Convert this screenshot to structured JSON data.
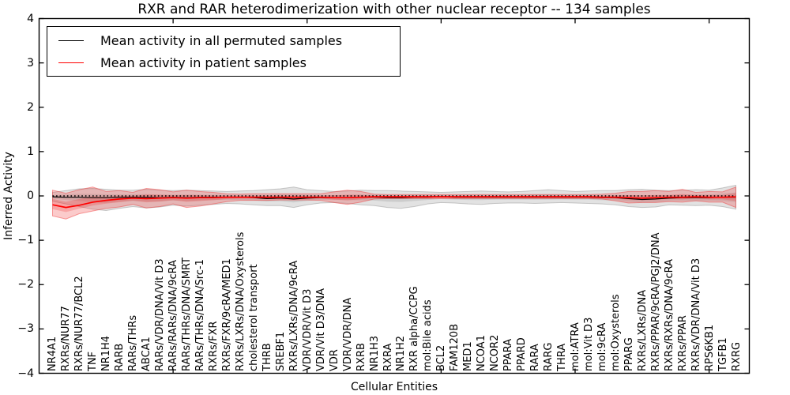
{
  "figure": {
    "title": "RXR and RAR heterodimerization with other nuclear receptor -- 134 samples"
  },
  "chart_data": {
    "type": "line",
    "title": "RXR and RAR heterodimerization with other nuclear receptor -- 134 samples",
    "xlabel": "Cellular Entities",
    "ylabel": "Inferred Activity",
    "ylim": [
      -4,
      4
    ],
    "yticks": [
      4,
      3,
      2,
      1,
      0,
      -1,
      -2,
      -3,
      -4
    ],
    "xlim": [
      0,
      53
    ],
    "secondary_axis_ticks": [
      10,
      20,
      30,
      40,
      50
    ],
    "grid": false,
    "legend_position": "upper left",
    "legend": [
      {
        "label": "Mean activity in all permuted samples",
        "color": "#000000"
      },
      {
        "label": "Mean activity in patient samples",
        "color": "#ff0000"
      }
    ],
    "zero_line": {
      "y": 0,
      "style": "dotted",
      "color": "#000000"
    },
    "band_alpha": 0.25,
    "inner_band_fraction": 0.4,
    "categories": [
      "NR4A1",
      "RXRs/NUR77",
      "RXRs/NUR77/BCL2",
      "TNF",
      "NR1H4",
      "RARB",
      "RARs/THRs",
      "ABCA1",
      "RARs/VDR/DNA/Vit D3",
      "RARs/RARs/DNA/9cRA",
      "RARs/THRs/DNA/SMRT",
      "RARs/THRs/DNA/Src-1",
      "RXRs/FXR",
      "RXRs/FXR/9cRA/MED1",
      "RXRs/LXRs/DNA/Oxysterols",
      "cholesterol transport",
      "THRB",
      "SREBF1",
      "RXRs/LXRs/DNA/9cRA",
      "VDR/VDR/Vit D3",
      "VDR/Vit D3/DNA",
      "VDR",
      "VDR/VDR/DNA",
      "RXRB",
      "NR1H3",
      "RXRA",
      "NR1H2",
      "RXR alpha/CCPG",
      "mol:Bile acids",
      "BCL2",
      "FAM120B",
      "MED1",
      "NCOA1",
      "NCOR2",
      "PPARA",
      "PPARD",
      "RARA",
      "RARG",
      "THRA",
      "mol:ATRA",
      "mol:Vit D3",
      "mol:9cRA",
      "mol:Oxysterols",
      "PPARG",
      "RXRs/LXRs/DNA",
      "RXRs/PPAR/9cRA/PGJ2/DNA",
      "RXRs/RXRs/DNA/9cRA",
      "RXRs/PPAR",
      "RXRs/VDR/DNA/Vit D3",
      "RPS6KB1",
      "TGFB1",
      "RXRG"
    ],
    "series": [
      {
        "name": "Mean activity in all permuted samples",
        "color": "#000000",
        "band_color": "#8c8c8c",
        "values": [
          -0.02,
          -0.03,
          -0.03,
          -0.04,
          -0.04,
          -0.03,
          -0.03,
          -0.03,
          -0.04,
          -0.03,
          -0.04,
          -0.03,
          -0.03,
          -0.03,
          -0.03,
          -0.04,
          -0.06,
          -0.05,
          -0.07,
          -0.05,
          -0.04,
          -0.04,
          -0.04,
          -0.03,
          -0.03,
          -0.04,
          -0.04,
          -0.03,
          -0.03,
          -0.02,
          -0.03,
          -0.03,
          -0.03,
          -0.03,
          -0.03,
          -0.03,
          -0.03,
          -0.03,
          -0.03,
          -0.03,
          -0.03,
          -0.04,
          -0.04,
          -0.06,
          -0.08,
          -0.07,
          -0.05,
          -0.04,
          -0.04,
          -0.04,
          -0.03,
          -0.03
        ],
        "band_upper": [
          0.08,
          0.12,
          0.16,
          0.17,
          0.15,
          0.13,
          0.13,
          0.15,
          0.13,
          0.12,
          0.13,
          0.12,
          0.11,
          0.1,
          0.11,
          0.12,
          0.14,
          0.16,
          0.2,
          0.14,
          0.12,
          0.1,
          0.11,
          0.13,
          0.12,
          0.12,
          0.11,
          0.1,
          0.09,
          0.08,
          0.09,
          0.1,
          0.11,
          0.1,
          0.09,
          0.1,
          0.12,
          0.14,
          0.12,
          0.1,
          0.11,
          0.12,
          0.12,
          0.14,
          0.15,
          0.13,
          0.12,
          0.13,
          0.14,
          0.13,
          0.18,
          0.24
        ],
        "band_lower": [
          -0.12,
          -0.18,
          -0.24,
          -0.3,
          -0.33,
          -0.28,
          -0.24,
          -0.27,
          -0.25,
          -0.21,
          -0.23,
          -0.21,
          -0.19,
          -0.17,
          -0.18,
          -0.2,
          -0.22,
          -0.22,
          -0.26,
          -0.2,
          -0.16,
          -0.15,
          -0.17,
          -0.2,
          -0.22,
          -0.26,
          -0.28,
          -0.24,
          -0.18,
          -0.15,
          -0.16,
          -0.18,
          -0.19,
          -0.17,
          -0.16,
          -0.16,
          -0.17,
          -0.16,
          -0.15,
          -0.16,
          -0.17,
          -0.18,
          -0.2,
          -0.24,
          -0.26,
          -0.25,
          -0.2,
          -0.21,
          -0.22,
          -0.21,
          -0.24,
          -0.3
        ]
      },
      {
        "name": "Mean activity in patient samples",
        "color": "#ff0000",
        "band_color": "#f03030",
        "values": [
          -0.2,
          -0.26,
          -0.21,
          -0.14,
          -0.1,
          -0.07,
          -0.05,
          -0.06,
          -0.05,
          -0.04,
          -0.05,
          -0.04,
          -0.04,
          -0.03,
          -0.03,
          -0.03,
          -0.03,
          -0.03,
          -0.03,
          -0.03,
          -0.03,
          -0.04,
          -0.04,
          -0.03,
          -0.02,
          -0.02,
          -0.02,
          -0.02,
          -0.02,
          -0.02,
          -0.02,
          -0.02,
          -0.02,
          -0.02,
          -0.02,
          -0.02,
          -0.02,
          -0.02,
          -0.02,
          -0.02,
          -0.02,
          -0.03,
          -0.03,
          -0.04,
          -0.05,
          -0.04,
          -0.03,
          -0.03,
          -0.02,
          -0.03,
          -0.03,
          -0.02
        ],
        "band_upper": [
          0.13,
          0.06,
          0.14,
          0.2,
          0.1,
          0.12,
          0.08,
          0.17,
          0.14,
          0.09,
          0.13,
          0.1,
          0.08,
          0.05,
          0.04,
          0.05,
          0.05,
          0.05,
          0.05,
          0.05,
          0.05,
          0.09,
          0.13,
          0.1,
          0.04,
          0.03,
          0.03,
          0.03,
          0.03,
          0.03,
          0.03,
          0.03,
          0.03,
          0.03,
          0.03,
          0.03,
          0.03,
          0.03,
          0.03,
          0.03,
          0.03,
          0.04,
          0.06,
          0.1,
          0.1,
          0.12,
          0.1,
          0.15,
          0.08,
          0.1,
          0.09,
          0.2
        ],
        "band_lower": [
          -0.45,
          -0.52,
          -0.4,
          -0.34,
          -0.28,
          -0.25,
          -0.19,
          -0.27,
          -0.24,
          -0.18,
          -0.26,
          -0.23,
          -0.18,
          -0.13,
          -0.1,
          -0.1,
          -0.1,
          -0.09,
          -0.09,
          -0.09,
          -0.1,
          -0.15,
          -0.19,
          -0.14,
          -0.07,
          -0.06,
          -0.06,
          -0.06,
          -0.06,
          -0.06,
          -0.06,
          -0.06,
          -0.06,
          -0.06,
          -0.06,
          -0.06,
          -0.06,
          -0.06,
          -0.06,
          -0.06,
          -0.06,
          -0.07,
          -0.11,
          -0.16,
          -0.15,
          -0.15,
          -0.13,
          -0.14,
          -0.11,
          -0.14,
          -0.14,
          -0.26
        ]
      }
    ]
  }
}
